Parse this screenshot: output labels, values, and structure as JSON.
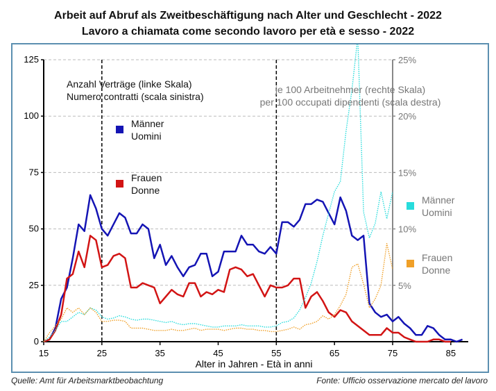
{
  "chart_data": {
    "type": "line",
    "title": "Arbeit auf Abruf als Zweitbeschäftigung nach Alter und Geschlecht - 2022",
    "subtitle": "Lavoro a chiamata come secondo lavoro per età e sesso - 2022",
    "xlabel": "Alter in Jahren - Età in anni",
    "ylabel_left": "Anzahl Verträge (linke Skala) / Numero contratti (scala sinistra)",
    "ylabel_right": "je 100 Arbeitnehmer (rechte Skala) / per 100 occupati dipendenti (scala destra)",
    "annotation_left": [
      "Anzahl Verträge (linke Skala)",
      "Numero contratti (scala sinistra)"
    ],
    "annotation_right": [
      "je 100 Arbeitnehmer (rechte Skala)",
      "per 100 occupati dipendenti (scala destra)"
    ],
    "xlim": [
      15,
      88
    ],
    "ylim_left": [
      0,
      125
    ],
    "ylim_right": [
      0,
      25
    ],
    "x_ticks": [
      15,
      25,
      35,
      45,
      55,
      65,
      75,
      85
    ],
    "y_ticks_left": [
      0,
      25,
      50,
      75,
      100,
      125
    ],
    "y_ticks_right": [
      "0%",
      "5%",
      "10%",
      "15%",
      "20%",
      "25%"
    ],
    "y_ticks_right_values": [
      0,
      5,
      10,
      15,
      20,
      25
    ],
    "vlines": [
      25,
      55
    ],
    "grid": true,
    "series": [
      {
        "name": "Männer / Uomini",
        "legend": [
          "Männer",
          "Uomini"
        ],
        "axis": "left",
        "color": "#1414b4",
        "style": "solid",
        "x": [
          15,
          16,
          17,
          18,
          19,
          20,
          21,
          22,
          23,
          24,
          25,
          26,
          27,
          28,
          29,
          30,
          31,
          32,
          33,
          34,
          35,
          36,
          37,
          38,
          39,
          40,
          41,
          42,
          43,
          44,
          45,
          46,
          47,
          48,
          49,
          50,
          51,
          52,
          53,
          54,
          55,
          56,
          57,
          58,
          59,
          60,
          61,
          62,
          63,
          64,
          65,
          66,
          67,
          68,
          69,
          70,
          71,
          72,
          73,
          74,
          75,
          76,
          77,
          78,
          79,
          80,
          81,
          82,
          83,
          84,
          85,
          86,
          87
        ],
        "values": [
          0,
          1,
          6,
          19,
          24,
          37,
          52,
          49,
          65,
          59,
          50,
          47,
          52,
          57,
          55,
          48,
          48,
          52,
          50,
          37,
          43,
          34,
          38,
          33,
          29,
          33,
          34,
          39,
          39,
          29,
          31,
          40,
          40,
          40,
          47,
          43,
          43,
          40,
          39,
          42,
          39,
          53,
          53,
          51,
          54,
          61,
          61,
          63,
          62,
          57,
          52,
          64,
          58,
          47,
          45,
          47,
          17,
          13,
          11,
          12,
          9,
          11,
          8,
          6,
          3,
          3,
          7,
          6,
          3,
          1,
          1,
          0,
          1
        ]
      },
      {
        "name": "Frauen / Donne",
        "legend": [
          "Frauen",
          "Donne"
        ],
        "axis": "left",
        "color": "#d21414",
        "style": "solid",
        "x": [
          15,
          16,
          17,
          18,
          19,
          20,
          21,
          22,
          23,
          24,
          25,
          26,
          27,
          28,
          29,
          30,
          31,
          32,
          33,
          34,
          35,
          36,
          37,
          38,
          39,
          40,
          41,
          42,
          43,
          44,
          45,
          46,
          47,
          48,
          49,
          50,
          51,
          52,
          53,
          54,
          55,
          56,
          57,
          58,
          59,
          60,
          61,
          62,
          63,
          64,
          65,
          66,
          67,
          68,
          69,
          70,
          71,
          72,
          73,
          74,
          75,
          76,
          77,
          78,
          79,
          80,
          81,
          82,
          83,
          84,
          85
        ],
        "values": [
          0,
          1,
          5,
          12,
          28,
          30,
          40,
          33,
          47,
          45,
          33,
          34,
          38,
          39,
          37,
          24,
          24,
          26,
          25,
          24,
          17,
          20,
          23,
          21,
          20,
          26,
          26,
          20,
          22,
          21,
          23,
          22,
          32,
          33,
          32,
          29,
          30,
          25,
          20,
          25,
          24,
          24,
          25,
          28,
          28,
          15,
          20,
          22,
          18,
          13,
          11,
          14,
          13,
          9,
          7,
          5,
          3,
          3,
          3,
          6,
          4,
          4,
          2,
          1,
          0,
          0,
          0,
          1,
          1,
          0,
          0
        ]
      },
      {
        "name": "Männer / Uomini (je 100)",
        "legend": [
          "Männer",
          "Uomini"
        ],
        "axis": "right",
        "color": "#28dcdc",
        "style": "dotted",
        "x": [
          15,
          16,
          17,
          18,
          19,
          20,
          21,
          22,
          23,
          24,
          25,
          26,
          27,
          28,
          29,
          30,
          31,
          32,
          33,
          34,
          35,
          36,
          37,
          38,
          39,
          40,
          41,
          42,
          43,
          44,
          45,
          46,
          47,
          48,
          49,
          50,
          51,
          52,
          53,
          54,
          55,
          56,
          57,
          58,
          59,
          60,
          61,
          62,
          63,
          64,
          65,
          66,
          67,
          68,
          69,
          70,
          71,
          72,
          73,
          74,
          75
        ],
        "values": [
          0,
          0.4,
          1,
          1.8,
          1.8,
          2.2,
          2.6,
          2.4,
          3,
          2.8,
          2.2,
          2,
          2.1,
          2.3,
          2.2,
          2,
          1.9,
          2,
          2,
          1.9,
          1.8,
          1.7,
          1.8,
          1.6,
          1.5,
          1.6,
          1.6,
          1.5,
          1.4,
          1.3,
          1.3,
          1.4,
          1.4,
          1.4,
          1.5,
          1.4,
          1.4,
          1.4,
          1.3,
          1.3,
          1.4,
          1.7,
          1.8,
          2.1,
          2.8,
          3.9,
          5.2,
          7.1,
          9.4,
          11.4,
          13.3,
          14.2,
          18.7,
          22.3,
          27,
          11.5,
          9.2,
          10.5,
          13.3,
          10.9,
          13.3
        ]
      },
      {
        "name": "Frauen / Donne (je 100)",
        "legend": [
          "Frauen",
          "Donne"
        ],
        "axis": "right",
        "color": "#f0a028",
        "style": "dotted",
        "x": [
          15,
          16,
          17,
          18,
          19,
          20,
          21,
          22,
          23,
          24,
          25,
          26,
          27,
          28,
          29,
          30,
          31,
          32,
          33,
          34,
          35,
          36,
          37,
          38,
          39,
          40,
          41,
          42,
          43,
          44,
          45,
          46,
          47,
          48,
          49,
          50,
          51,
          52,
          53,
          54,
          55,
          56,
          57,
          58,
          59,
          60,
          61,
          62,
          63,
          64,
          65,
          66,
          67,
          68,
          69,
          70,
          71,
          72,
          73,
          74,
          75
        ],
        "values": [
          0,
          0.8,
          1.4,
          2,
          3,
          2.6,
          3,
          2.4,
          3,
          2.6,
          1.8,
          1.8,
          1.9,
          1.9,
          1.8,
          1.2,
          1.2,
          1.2,
          1.1,
          1,
          1,
          1,
          1.1,
          1,
          1,
          1.1,
          1.2,
          1,
          1.1,
          1.1,
          1.1,
          1,
          1.1,
          1.2,
          1.2,
          1.1,
          1.1,
          1,
          1,
          0.9,
          0.9,
          1,
          1.1,
          1.3,
          1.1,
          1.5,
          1.6,
          1.8,
          2.3,
          2,
          2.4,
          3.2,
          4.2,
          6.6,
          6.9,
          5.1,
          3,
          3.8,
          5,
          8.7,
          6.4
        ]
      }
    ]
  },
  "source_left": "Quelle: Amt für Arbeitsmarktbeobachtung",
  "source_right": "Fonte: Ufficio osservazione mercato del lavoro"
}
